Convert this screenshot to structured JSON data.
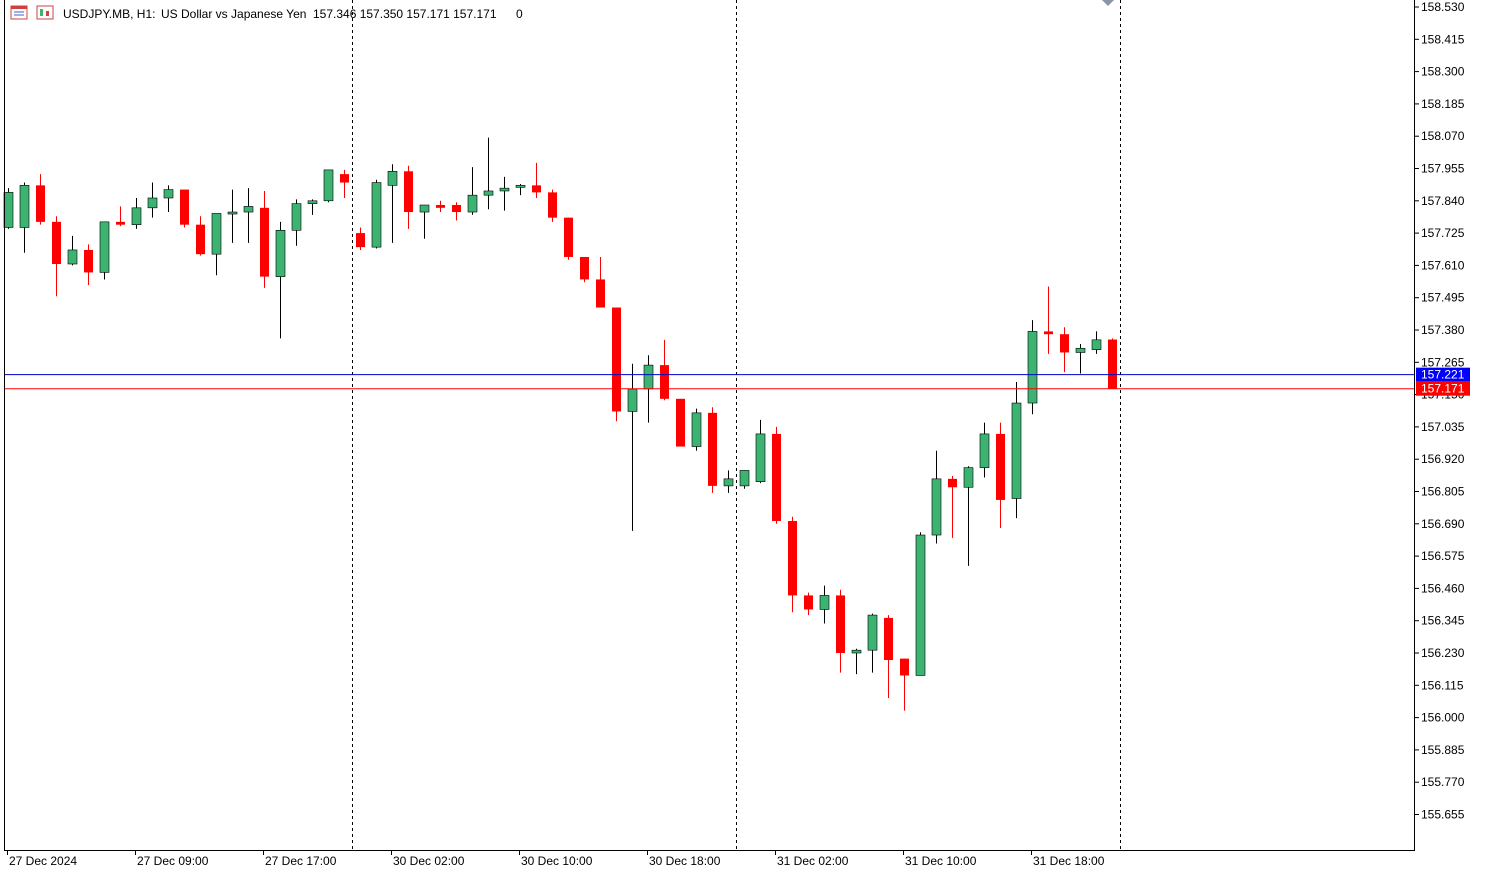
{
  "header": {
    "symbol": "USDJPY.MB, H1:",
    "description": "US Dollar vs Japanese Yen",
    "ohlc": "157.346 157.350 157.171 157.171",
    "volume": "0",
    "icon_left": "chart-menu-icon",
    "icon_right": "symbol-window-icon"
  },
  "colors": {
    "bull": "#3cb371",
    "bear": "#ff0000",
    "bid_line": "#0000cd",
    "ask_line": "#ff0000",
    "bid_tag": "#0000ff",
    "ask_tag": "#ff0000",
    "axis": "#000000",
    "background": "#ffffff"
  },
  "chart_data": {
    "type": "candlestick",
    "title": "USDJPY.MB, H1: US Dollar vs Japanese Yen",
    "grid": false,
    "ylim": [
      155.575,
      158.55
    ],
    "y_ticks": [
      "158.530",
      "158.415",
      "158.300",
      "158.185",
      "158.070",
      "157.955",
      "157.840",
      "157.725",
      "157.610",
      "157.495",
      "157.380",
      "157.265",
      "157.150",
      "157.035",
      "156.920",
      "156.805",
      "156.690",
      "156.575",
      "156.460",
      "156.345",
      "156.230",
      "156.115",
      "156.000",
      "155.885",
      "155.770",
      "155.655"
    ],
    "x_labels": [
      "27 Dec 2024",
      "27 Dec 09:00",
      "27 Dec 17:00",
      "30 Dec 02:00",
      "30 Dec 10:00",
      "30 Dec 18:00",
      "31 Dec 02:00",
      "31 Dec 10:00",
      "31 Dec 18:00"
    ],
    "x_label_bar_index": [
      0,
      8,
      16,
      24,
      32,
      40,
      48,
      56,
      64
    ],
    "day_separators_after_bar": [
      21,
      45,
      69
    ],
    "bid_price": "157.221",
    "ask_price": "157.171",
    "bid_value": 157.221,
    "ask_value": 157.171,
    "candles": [
      {
        "o": 157.745,
        "h": 157.885,
        "l": 157.74,
        "c": 157.87
      },
      {
        "o": 157.745,
        "h": 157.905,
        "l": 157.655,
        "c": 157.895
      },
      {
        "o": 157.895,
        "h": 157.935,
        "l": 157.755,
        "c": 157.765
      },
      {
        "o": 157.765,
        "h": 157.785,
        "l": 157.5,
        "c": 157.615
      },
      {
        "o": 157.615,
        "h": 157.715,
        "l": 157.61,
        "c": 157.665
      },
      {
        "o": 157.665,
        "h": 157.685,
        "l": 157.54,
        "c": 157.585
      },
      {
        "o": 157.585,
        "h": 157.765,
        "l": 157.56,
        "c": 157.765
      },
      {
        "o": 157.765,
        "h": 157.82,
        "l": 157.75,
        "c": 157.755
      },
      {
        "o": 157.755,
        "h": 157.85,
        "l": 157.74,
        "c": 157.815
      },
      {
        "o": 157.815,
        "h": 157.905,
        "l": 157.78,
        "c": 157.85
      },
      {
        "o": 157.85,
        "h": 157.895,
        "l": 157.8,
        "c": 157.88
      },
      {
        "o": 157.88,
        "h": 157.88,
        "l": 157.745,
        "c": 157.755
      },
      {
        "o": 157.755,
        "h": 157.785,
        "l": 157.645,
        "c": 157.65
      },
      {
        "o": 157.65,
        "h": 157.79,
        "l": 157.575,
        "c": 157.795
      },
      {
        "o": 157.795,
        "h": 157.88,
        "l": 157.69,
        "c": 157.8
      },
      {
        "o": 157.8,
        "h": 157.885,
        "l": 157.69,
        "c": 157.82
      },
      {
        "o": 157.815,
        "h": 157.875,
        "l": 157.53,
        "c": 157.57
      },
      {
        "o": 157.57,
        "h": 157.765,
        "l": 157.35,
        "c": 157.735
      },
      {
        "o": 157.735,
        "h": 157.845,
        "l": 157.68,
        "c": 157.83
      },
      {
        "o": 157.83,
        "h": 157.845,
        "l": 157.79,
        "c": 157.84
      },
      {
        "o": 157.84,
        "h": 157.95,
        "l": 157.835,
        "c": 157.95
      },
      {
        "o": 157.935,
        "h": 157.95,
        "l": 157.85,
        "c": 157.905
      },
      {
        "o": 157.725,
        "h": 157.745,
        "l": 157.665,
        "c": 157.675
      },
      {
        "o": 157.675,
        "h": 157.915,
        "l": 157.67,
        "c": 157.905
      },
      {
        "o": 157.895,
        "h": 157.97,
        "l": 157.69,
        "c": 157.945
      },
      {
        "o": 157.945,
        "h": 157.965,
        "l": 157.74,
        "c": 157.8
      },
      {
        "o": 157.8,
        "h": 157.825,
        "l": 157.705,
        "c": 157.825
      },
      {
        "o": 157.825,
        "h": 157.84,
        "l": 157.8,
        "c": 157.815
      },
      {
        "o": 157.825,
        "h": 157.835,
        "l": 157.77,
        "c": 157.8
      },
      {
        "o": 157.8,
        "h": 157.96,
        "l": 157.79,
        "c": 157.86
      },
      {
        "o": 157.86,
        "h": 158.065,
        "l": 157.81,
        "c": 157.875
      },
      {
        "o": 157.875,
        "h": 157.925,
        "l": 157.805,
        "c": 157.885
      },
      {
        "o": 157.89,
        "h": 157.9,
        "l": 157.86,
        "c": 157.895
      },
      {
        "o": 157.895,
        "h": 157.975,
        "l": 157.85,
        "c": 157.87
      },
      {
        "o": 157.87,
        "h": 157.88,
        "l": 157.765,
        "c": 157.78
      },
      {
        "o": 157.78,
        "h": 157.78,
        "l": 157.63,
        "c": 157.64
      },
      {
        "o": 157.64,
        "h": 157.64,
        "l": 157.55,
        "c": 157.56
      },
      {
        "o": 157.56,
        "h": 157.64,
        "l": 157.48,
        "c": 157.46
      },
      {
        "o": 157.46,
        "h": 157.46,
        "l": 157.055,
        "c": 157.09
      },
      {
        "o": 157.09,
        "h": 157.26,
        "l": 156.665,
        "c": 157.17
      },
      {
        "o": 157.17,
        "h": 157.29,
        "l": 157.05,
        "c": 157.255
      },
      {
        "o": 157.255,
        "h": 157.345,
        "l": 157.13,
        "c": 157.135
      },
      {
        "o": 157.135,
        "h": 157.135,
        "l": 156.98,
        "c": 156.965
      },
      {
        "o": 156.965,
        "h": 157.1,
        "l": 156.95,
        "c": 157.085
      },
      {
        "o": 157.085,
        "h": 157.105,
        "l": 156.8,
        "c": 156.825
      },
      {
        "o": 156.825,
        "h": 156.88,
        "l": 156.8,
        "c": 156.85
      },
      {
        "o": 156.825,
        "h": 156.88,
        "l": 156.815,
        "c": 156.88
      },
      {
        "o": 156.84,
        "h": 157.06,
        "l": 156.835,
        "c": 157.01
      },
      {
        "o": 157.01,
        "h": 157.035,
        "l": 156.69,
        "c": 156.7
      },
      {
        "o": 156.7,
        "h": 156.715,
        "l": 156.375,
        "c": 156.435
      },
      {
        "o": 156.435,
        "h": 156.445,
        "l": 156.365,
        "c": 156.385
      },
      {
        "o": 156.385,
        "h": 156.47,
        "l": 156.335,
        "c": 156.435
      },
      {
        "o": 156.435,
        "h": 156.455,
        "l": 156.16,
        "c": 156.23
      },
      {
        "o": 156.23,
        "h": 156.245,
        "l": 156.155,
        "c": 156.24
      },
      {
        "o": 156.24,
        "h": 156.37,
        "l": 156.16,
        "c": 156.365
      },
      {
        "o": 156.355,
        "h": 156.365,
        "l": 156.07,
        "c": 156.205
      },
      {
        "o": 156.21,
        "h": 156.21,
        "l": 156.025,
        "c": 156.15
      },
      {
        "o": 156.15,
        "h": 156.66,
        "l": 156.15,
        "c": 156.65
      },
      {
        "o": 156.65,
        "h": 156.95,
        "l": 156.62,
        "c": 156.85
      },
      {
        "o": 156.85,
        "h": 156.86,
        "l": 156.64,
        "c": 156.82
      },
      {
        "o": 156.82,
        "h": 156.895,
        "l": 156.54,
        "c": 156.89
      },
      {
        "o": 156.89,
        "h": 157.05,
        "l": 156.855,
        "c": 157.01
      },
      {
        "o": 157.01,
        "h": 157.05,
        "l": 156.675,
        "c": 156.775
      },
      {
        "o": 156.78,
        "h": 157.195,
        "l": 156.71,
        "c": 157.12
      },
      {
        "o": 157.12,
        "h": 157.415,
        "l": 157.08,
        "c": 157.375
      },
      {
        "o": 157.375,
        "h": 157.535,
        "l": 157.295,
        "c": 157.365
      },
      {
        "o": 157.365,
        "h": 157.39,
        "l": 157.23,
        "c": 157.3
      },
      {
        "o": 157.3,
        "h": 157.33,
        "l": 157.225,
        "c": 157.315
      },
      {
        "o": 157.31,
        "h": 157.375,
        "l": 157.295,
        "c": 157.345
      },
      {
        "o": 157.346,
        "h": 157.35,
        "l": 157.171,
        "c": 157.171
      }
    ]
  }
}
